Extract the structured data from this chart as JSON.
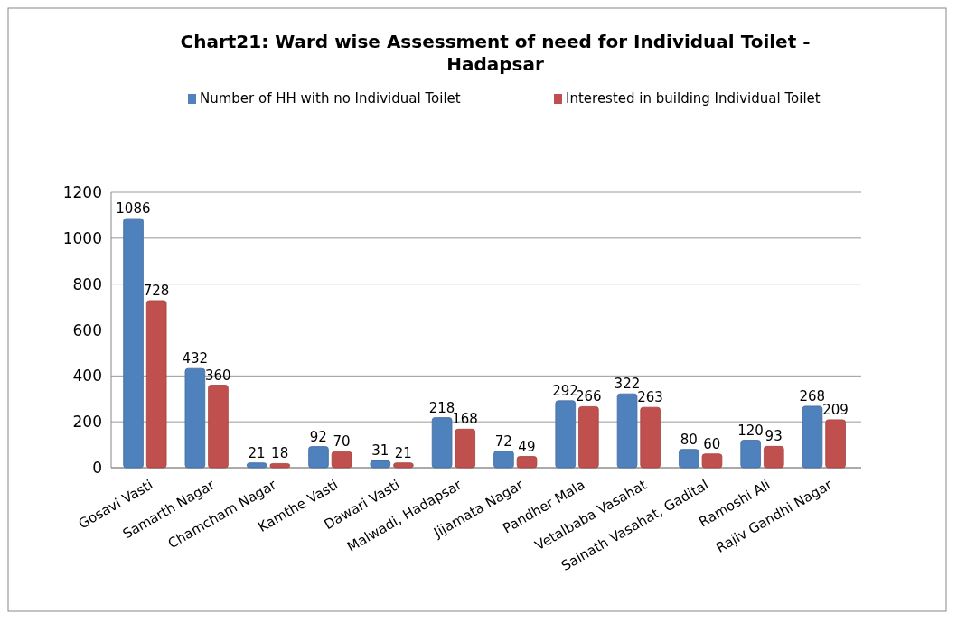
{
  "chart_data": {
    "type": "bar",
    "title": "Chart21: Ward wise Assessment of need for Individual Toilet - Hadapsar",
    "categories": [
      "Gosavi Vasti",
      "Samarth Nagar",
      "Chamcham Nagar",
      "Kamthe Vasti",
      "Dawari Vasti",
      "Malwadi, Hadapsar",
      "Jijamata Nagar",
      "Pandher Mala",
      "Vetalbaba Vasahat",
      "Sainath Vasahat, Gadital",
      "Ramoshi Ali",
      "Rajiv Gandhi Nagar"
    ],
    "series": [
      {
        "name": "Number of HH with no Individual Toilet",
        "color": "#4f81bd",
        "values": [
          1086,
          432,
          21,
          92,
          31,
          218,
          72,
          292,
          322,
          80,
          120,
          268
        ]
      },
      {
        "name": "Interested in building Individual Toilet",
        "color": "#c0504d",
        "values": [
          728,
          360,
          18,
          70,
          21,
          168,
          49,
          266,
          263,
          60,
          93,
          209
        ]
      }
    ],
    "ylim": [
      0,
      1200
    ],
    "yticks": [
      0,
      200,
      400,
      600,
      800,
      1000,
      1200
    ],
    "grid": "y",
    "legend": "top",
    "data_labels": true
  }
}
